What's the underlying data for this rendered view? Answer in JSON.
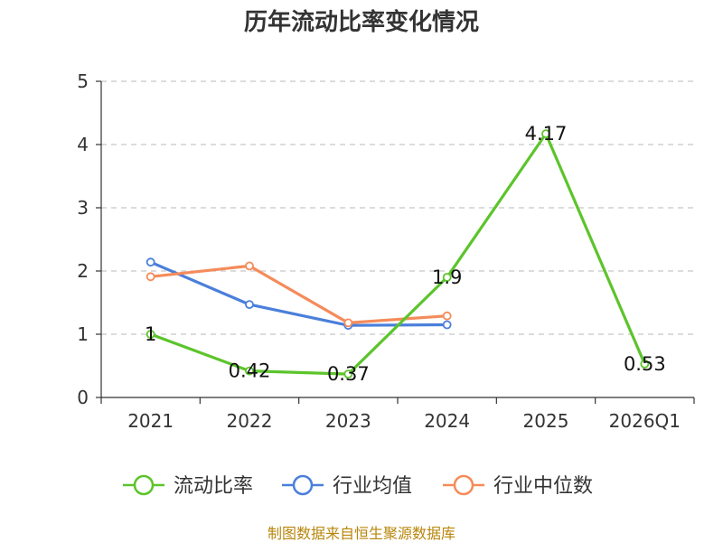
{
  "chart_data": {
    "type": "line",
    "title": "历年流动比率变化情况",
    "categories": [
      "2021",
      "2022",
      "2023",
      "2024",
      "2025",
      "2026Q1"
    ],
    "ylim": [
      0,
      5
    ],
    "yticks": [
      "0",
      "1",
      "2",
      "3",
      "4",
      "5"
    ],
    "grid": true,
    "legend_position": "bottom",
    "series": [
      {
        "name": "流动比率",
        "color": "#5cc42b",
        "values": [
          1,
          0.42,
          0.37,
          1.9,
          4.17,
          0.53
        ],
        "labels": [
          "1",
          "0.42",
          "0.37",
          "1.9",
          "4.17",
          "0.53"
        ]
      },
      {
        "name": "行业均值",
        "color": "#4a7fdb",
        "values": [
          2.14,
          1.47,
          1.14,
          1.15,
          null,
          null
        ]
      },
      {
        "name": "行业中位数",
        "color": "#f58b5a",
        "values": [
          1.91,
          2.08,
          1.18,
          1.29,
          null,
          null
        ]
      }
    ]
  },
  "footer": {
    "source": "制图数据来自恒生聚源数据库"
  }
}
